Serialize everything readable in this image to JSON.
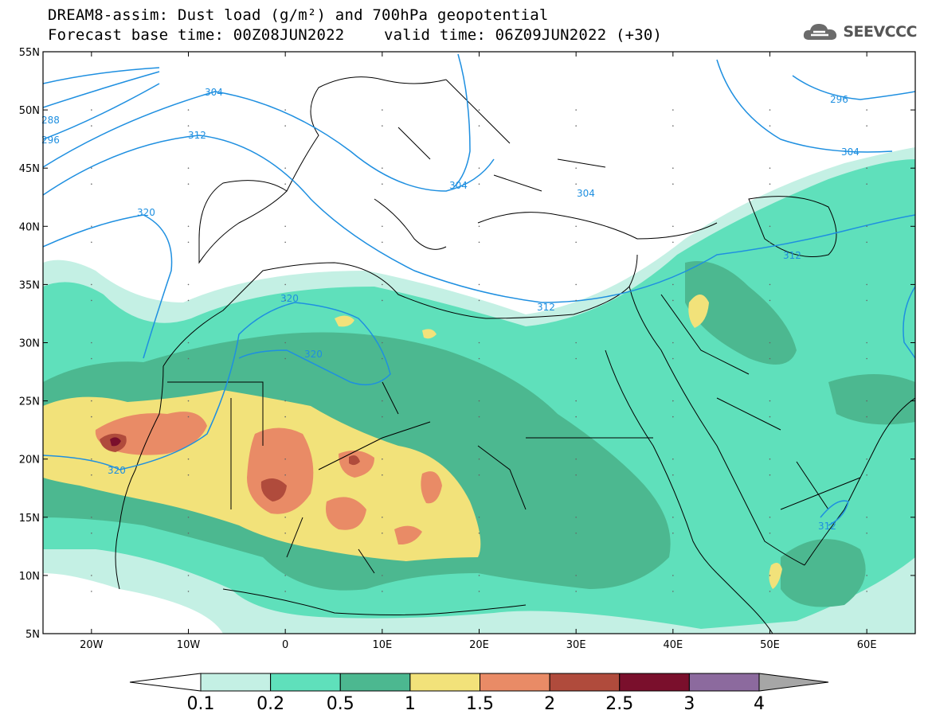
{
  "title": {
    "line1": "DREAM8-assim: Dust load (g/m²) and 700hPa geopotential",
    "line2_left": "Forecast base time: 00Z08JUN2022",
    "line2_right": "valid time: 06Z09JUN2022 (+30)"
  },
  "logo": {
    "text": "SEEVCCC",
    "icon": "cloud-icon"
  },
  "map": {
    "lon_range": [
      -25,
      65
    ],
    "lat_range": [
      5,
      55
    ],
    "x_ticks": [
      {
        "value": -20,
        "label": "20W"
      },
      {
        "value": -10,
        "label": "10W"
      },
      {
        "value": 0,
        "label": "0"
      },
      {
        "value": 10,
        "label": "10E"
      },
      {
        "value": 20,
        "label": "20E"
      },
      {
        "value": 30,
        "label": "30E"
      },
      {
        "value": 40,
        "label": "40E"
      },
      {
        "value": 50,
        "label": "50E"
      },
      {
        "value": 60,
        "label": "60E"
      }
    ],
    "y_ticks": [
      {
        "value": 5,
        "label": "5N"
      },
      {
        "value": 10,
        "label": "10N"
      },
      {
        "value": 15,
        "label": "15N"
      },
      {
        "value": 20,
        "label": "20N"
      },
      {
        "value": 25,
        "label": "25N"
      },
      {
        "value": 30,
        "label": "30N"
      },
      {
        "value": 35,
        "label": "35N"
      },
      {
        "value": 40,
        "label": "40N"
      },
      {
        "value": 45,
        "label": "45N"
      },
      {
        "value": 50,
        "label": "50N"
      },
      {
        "value": 55,
        "label": "55N"
      }
    ],
    "geopotential_labels": [
      "304",
      "312",
      "320",
      "296",
      "288",
      "304",
      "304",
      "304",
      "312",
      "320",
      "320",
      "320",
      "312",
      "312",
      "296",
      "304"
    ]
  },
  "colorbar": {
    "labels": [
      "0.1",
      "0.2",
      "0.5",
      "1",
      "1.5",
      "2",
      "2.5",
      "3",
      "4"
    ],
    "colors": [
      "#c4f0e4",
      "#5fe0bb",
      "#4cb890",
      "#f2e27a",
      "#e98b66",
      "#b04b3c",
      "#7a0f2c",
      "#8c6a9e"
    ],
    "under_color": "#ffffff",
    "over_color": "#a6a6a6"
  }
}
